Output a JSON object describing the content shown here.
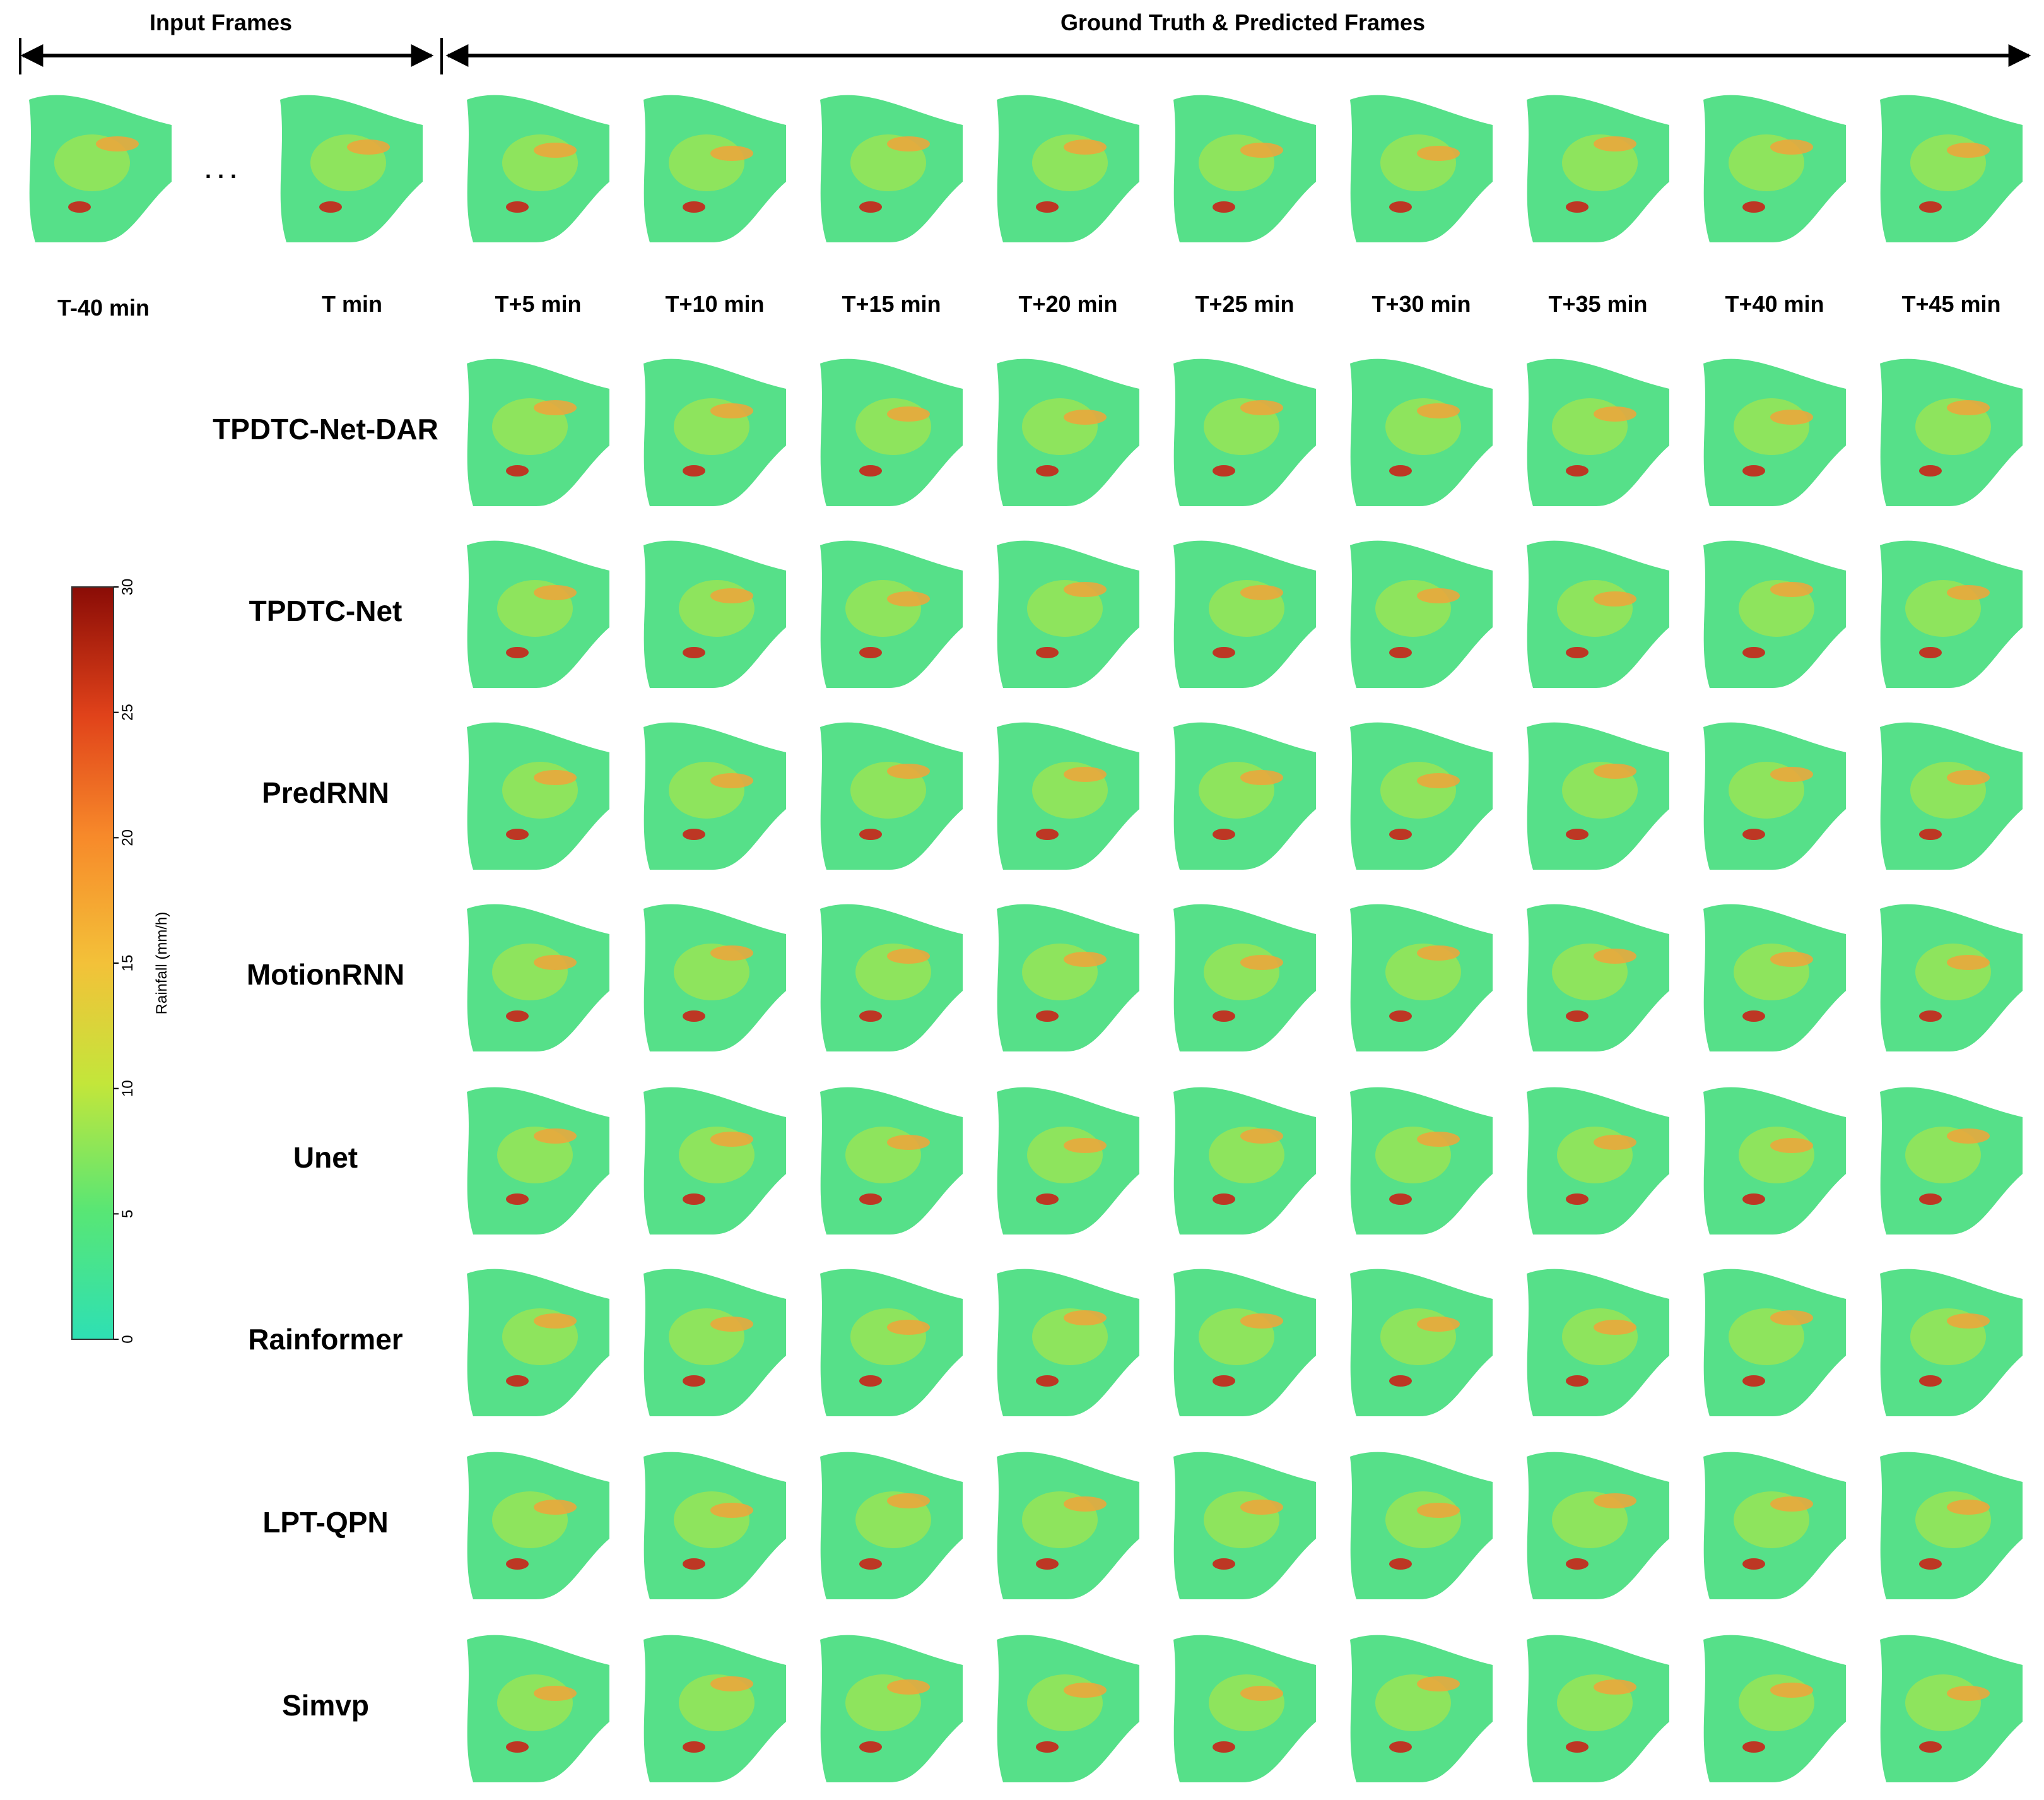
{
  "header": {
    "input_frames": "Input Frames",
    "predicted_frames": "Ground Truth & Predicted Frames",
    "ellipsis": ". . ."
  },
  "time_labels": [
    "T-40 min",
    "T min",
    "T+5 min",
    "T+10 min",
    "T+15 min",
    "T+20 min",
    "T+25 min",
    "T+30 min",
    "T+35 min",
    "T+40 min",
    "T+45 min"
  ],
  "models": [
    "TPDTC-Net-DAR",
    "TPDTC-Net",
    "PredRNN",
    "MotionRNN",
    "Unet",
    "Rainformer",
    "LPT-QPN",
    "Simvp"
  ],
  "colorbar": {
    "title": "Rainfall (mm/h)",
    "ticks": [
      "0",
      "5",
      "10",
      "15",
      "20",
      "25",
      "30"
    ],
    "min": 0,
    "max": 30,
    "colors": [
      "#2ee0b4",
      "#58e675",
      "#c3e63a",
      "#f3c139",
      "#f7892a",
      "#e0421a",
      "#8a0c06"
    ]
  }
}
